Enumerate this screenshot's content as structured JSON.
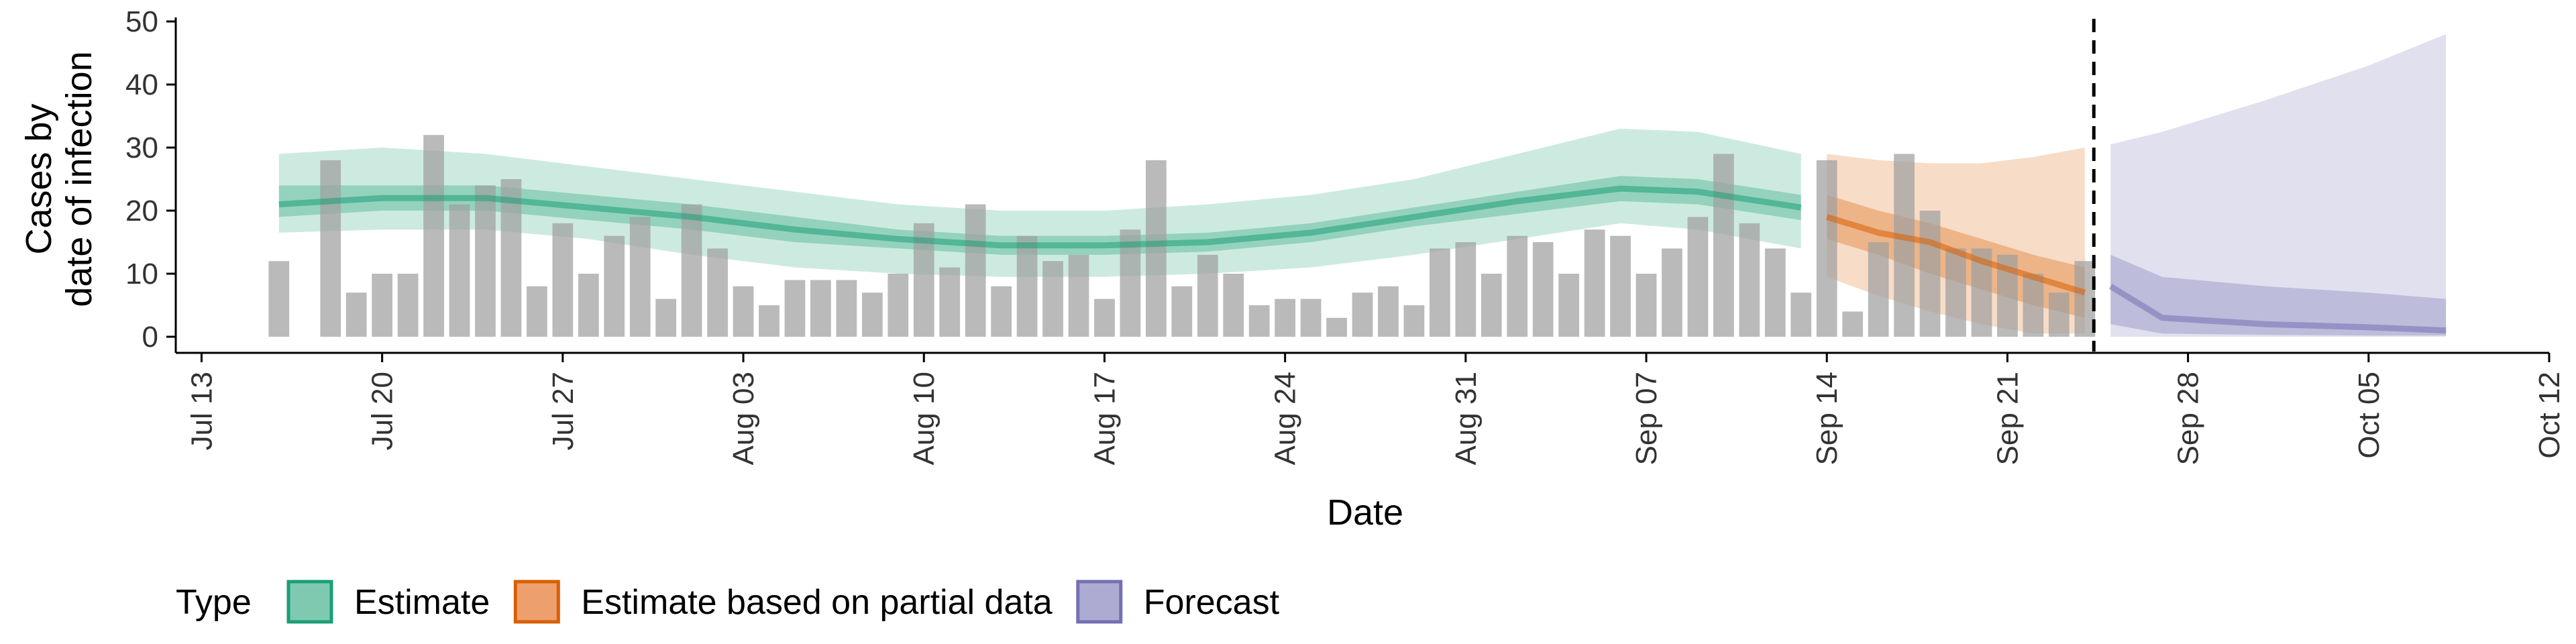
{
  "chart_data": {
    "type": "bar",
    "xlabel": "Date",
    "ylabel_lines": [
      "Cases by",
      "date of infection"
    ],
    "ylim": [
      0,
      50
    ],
    "y_ticks": [
      0,
      10,
      20,
      30,
      40,
      50
    ],
    "x_range": [
      "2020-07-12",
      "2020-10-12"
    ],
    "x_ticks": [
      {
        "date": "2020-07-13",
        "label": "Jul 13"
      },
      {
        "date": "2020-07-20",
        "label": "Jul 20"
      },
      {
        "date": "2020-07-27",
        "label": "Jul 27"
      },
      {
        "date": "2020-08-03",
        "label": "Aug 03"
      },
      {
        "date": "2020-08-10",
        "label": "Aug 10"
      },
      {
        "date": "2020-08-17",
        "label": "Aug 17"
      },
      {
        "date": "2020-08-24",
        "label": "Aug 24"
      },
      {
        "date": "2020-08-31",
        "label": "Aug 31"
      },
      {
        "date": "2020-09-07",
        "label": "Sep 07"
      },
      {
        "date": "2020-09-14",
        "label": "Sep 14"
      },
      {
        "date": "2020-09-21",
        "label": "Sep 21"
      },
      {
        "date": "2020-09-28",
        "label": "Sep 28"
      },
      {
        "date": "2020-10-05",
        "label": "Oct 05"
      },
      {
        "date": "2020-10-12",
        "label": "Oct 12"
      }
    ],
    "cutoff_date": "2020-09-24",
    "bars": {
      "start_date": "2020-07-16",
      "values": [
        12,
        0,
        28,
        7,
        10,
        10,
        32,
        21,
        24,
        25,
        8,
        18,
        10,
        16,
        19,
        6,
        21,
        14,
        8,
        5,
        9,
        9,
        9,
        7,
        10,
        18,
        11,
        21,
        8,
        16,
        12,
        13,
        6,
        17,
        28,
        8,
        13,
        10,
        5,
        6,
        6,
        3,
        7,
        8,
        5,
        14,
        15,
        10,
        16,
        15,
        10,
        17,
        16,
        10,
        14,
        19,
        29,
        18,
        14,
        7,
        28,
        4,
        15,
        29,
        20,
        14,
        14,
        13,
        10,
        7,
        12
      ]
    },
    "series": [
      {
        "name": "Estimate",
        "color": "#1b9e77",
        "dates": [
          "2020-07-16",
          "2020-07-20",
          "2020-07-24",
          "2020-07-28",
          "2020-08-01",
          "2020-08-05",
          "2020-08-09",
          "2020-08-13",
          "2020-08-17",
          "2020-08-21",
          "2020-08-25",
          "2020-08-29",
          "2020-09-02",
          "2020-09-06",
          "2020-09-09",
          "2020-09-13"
        ],
        "median": [
          21,
          22,
          22,
          20.5,
          19,
          17,
          15.5,
          14.5,
          14.5,
          15,
          16.5,
          19,
          21.5,
          23.5,
          23,
          20.5
        ],
        "inner": [
          [
            19,
            24
          ],
          [
            20,
            24
          ],
          [
            20,
            24
          ],
          [
            18.5,
            22.5
          ],
          [
            17,
            21
          ],
          [
            15,
            19
          ],
          [
            14,
            17
          ],
          [
            13,
            16
          ],
          [
            13,
            16
          ],
          [
            13.5,
            16.5
          ],
          [
            15,
            18
          ],
          [
            17.5,
            20.5
          ],
          [
            19.5,
            23
          ],
          [
            21.5,
            25.5
          ],
          [
            21,
            25
          ],
          [
            18.5,
            22.5
          ]
        ],
        "outer": [
          [
            16.5,
            29
          ],
          [
            17,
            30
          ],
          [
            17,
            29
          ],
          [
            15.5,
            27
          ],
          [
            13,
            25
          ],
          [
            11,
            23
          ],
          [
            10,
            21
          ],
          [
            9.5,
            20
          ],
          [
            9.5,
            20
          ],
          [
            10,
            21
          ],
          [
            11,
            22.5
          ],
          [
            13,
            25
          ],
          [
            15.5,
            29
          ],
          [
            18,
            33
          ],
          [
            17,
            32.5
          ],
          [
            14,
            29
          ]
        ]
      },
      {
        "name": "Estimate based on partial data",
        "color": "#d95f02",
        "dates": [
          "2020-09-14",
          "2020-09-16",
          "2020-09-18",
          "2020-09-20",
          "2020-09-22",
          "2020-09-24"
        ],
        "median": [
          19,
          16.5,
          15,
          12,
          9.5,
          7
        ],
        "inner": [
          [
            15.5,
            22.5
          ],
          [
            13,
            20
          ],
          [
            10,
            18
          ],
          [
            7.5,
            15.5
          ],
          [
            5,
            13
          ],
          [
            3,
            11
          ]
        ],
        "outer": [
          [
            9.5,
            29
          ],
          [
            6.5,
            28
          ],
          [
            4,
            27.5
          ],
          [
            2,
            27.5
          ],
          [
            0.5,
            28.5
          ],
          [
            0.5,
            30
          ]
        ]
      },
      {
        "name": "Forecast",
        "color": "#7570b3",
        "dates": [
          "2020-09-25",
          "2020-09-27",
          "2020-10-01",
          "2020-10-05",
          "2020-10-08"
        ],
        "median": [
          8,
          3,
          2,
          1.5,
          1
        ],
        "inner": [
          [
            2,
            13
          ],
          [
            0.5,
            9.5
          ],
          [
            0.3,
            8
          ],
          [
            0.2,
            7
          ],
          [
            0.2,
            6
          ]
        ],
        "outer": [
          [
            0,
            30.5
          ],
          [
            0,
            32.5
          ],
          [
            0,
            37.5
          ],
          [
            0,
            43
          ],
          [
            0,
            48
          ]
        ]
      }
    ],
    "legend": {
      "title": "Type",
      "placement": "bottom",
      "entries": [
        {
          "label": "Estimate",
          "fill": "#7fc9b1",
          "stroke": "#1b9e77"
        },
        {
          "label": "Estimate based on partial data",
          "fill": "#eda06d",
          "stroke": "#d95f02"
        },
        {
          "label": "Forecast",
          "fill": "#aeabd3",
          "stroke": "#7570b3"
        }
      ]
    }
  }
}
